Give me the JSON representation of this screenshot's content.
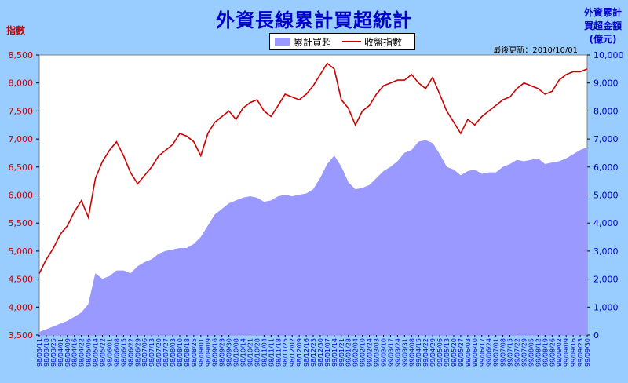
{
  "chart_data": {
    "type": "area+line",
    "title": "外資長線累計買超統計",
    "update_text": "最後更新：2010/10/01",
    "left_axis_label": "指數",
    "right_axis_label": [
      "外資累計",
      "買超金額",
      "(億元)"
    ],
    "legend": {
      "area": "累計買超",
      "line": "收盤指數"
    },
    "y_left": {
      "min": 3500,
      "max": 8500,
      "ticks": [
        "3,500",
        "4,000",
        "4,500",
        "5,000",
        "5,500",
        "6,000",
        "6,500",
        "7,000",
        "7,500",
        "8,000",
        "8,500"
      ]
    },
    "y_right": {
      "min": 0,
      "max": 10000,
      "ticks": [
        "0",
        "1,000",
        "2,000",
        "3,000",
        "4,000",
        "5,000",
        "6,000",
        "7,000",
        "8,000",
        "9,000",
        "10,000"
      ]
    },
    "x_labels": [
      "98/03/11",
      "98/03/18",
      "98/03/25",
      "98/04/01",
      "98/04/09",
      "98/04/16",
      "98/04/22",
      "98/05/06",
      "98/05/14",
      "98/05/22",
      "98/06/01",
      "98/06/08",
      "98/06/15",
      "98/06/22",
      "98/06/29",
      "98/07/06",
      "98/07/13",
      "98/07/20",
      "98/07/27",
      "98/08/03",
      "98/08/10",
      "98/08/18",
      "98/08/25",
      "98/09/01",
      "98/09/09",
      "98/09/16",
      "98/09/23",
      "98/09/30",
      "98/10/08",
      "98/10/14",
      "98/10/21",
      "98/10/28",
      "98/11/04",
      "98/11/11",
      "98/11/18",
      "98/11/25",
      "98/12/02",
      "98/12/09",
      "98/12/16",
      "98/12/23",
      "98/12/30",
      "99/01/07",
      "99/01/14",
      "99/01/21",
      "99/01/28",
      "99/02/04",
      "99/02/10",
      "99/02/24",
      "99/03/03",
      "99/03/10",
      "99/03/17",
      "99/03/24",
      "99/03/31",
      "99/04/08",
      "99/04/15",
      "99/04/22",
      "99/04/29",
      "99/05/06",
      "99/05/13",
      "99/05/20",
      "99/05/27",
      "99/06/03",
      "99/06/10",
      "99/06/17",
      "99/06/24",
      "99/07/01",
      "99/07/08",
      "99/07/15",
      "99/07/22",
      "99/07/29",
      "99/08/05",
      "99/08/12",
      "99/08/19",
      "99/08/26",
      "99/09/02",
      "99/09/09",
      "99/09/16",
      "99/09/23",
      "99/09/30"
    ],
    "index_series": [
      4600,
      4850,
      5050,
      5300,
      5450,
      5700,
      5900,
      5600,
      6300,
      6600,
      6800,
      6950,
      6700,
      6400,
      6200,
      6350,
      6500,
      6700,
      6800,
      6900,
      7100,
      7050,
      6950,
      6700,
      7100,
      7300,
      7400,
      7500,
      7350,
      7550,
      7650,
      7700,
      7500,
      7400,
      7600,
      7800,
      7750,
      7700,
      7800,
      7950,
      8150,
      8350,
      8250,
      7700,
      7550,
      7250,
      7500,
      7600,
      7800,
      7950,
      8000,
      8050,
      8050,
      8150,
      8000,
      7900,
      8100,
      7800,
      7500,
      7300,
      7100,
      7350,
      7250,
      7400,
      7500,
      7600,
      7700,
      7750,
      7900,
      8000,
      7950,
      7900,
      7800,
      7850,
      8050,
      8150,
      8200,
      8200,
      8250
    ],
    "cum_buy_series": [
      100,
      200,
      300,
      400,
      500,
      650,
      800,
      1100,
      2200,
      2000,
      2100,
      2300,
      2300,
      2200,
      2450,
      2600,
      2700,
      2900,
      3000,
      3050,
      3100,
      3100,
      3250,
      3500,
      3900,
      4300,
      4500,
      4700,
      4800,
      4900,
      4950,
      4900,
      4750,
      4800,
      4950,
      5000,
      4950,
      5000,
      5050,
      5200,
      5600,
      6100,
      6400,
      6000,
      5450,
      5200,
      5250,
      5350,
      5600,
      5850,
      6000,
      6200,
      6500,
      6600,
      6900,
      6950,
      6850,
      6450,
      6000,
      5900,
      5700,
      5850,
      5900,
      5750,
      5800,
      5800,
      6000,
      6100,
      6250,
      6200,
      6250,
      6300,
      6100,
      6150,
      6200,
      6300,
      6450,
      6600,
      6700
    ]
  }
}
